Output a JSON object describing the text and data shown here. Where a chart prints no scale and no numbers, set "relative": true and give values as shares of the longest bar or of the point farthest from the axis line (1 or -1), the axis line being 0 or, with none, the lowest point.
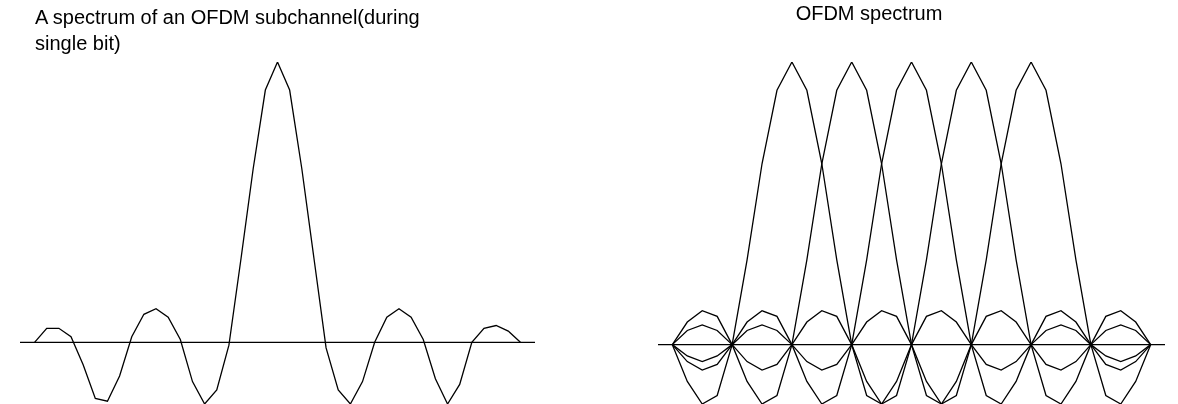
{
  "chart_data": [
    {
      "type": "line",
      "title": "A spectrum of an OFDM subchannel(during single bit)",
      "relative": true,
      "marker": "none",
      "categories": [
        null,
        null,
        null,
        null,
        null,
        null,
        null,
        null,
        null,
        null,
        null,
        null,
        null,
        null,
        null,
        null,
        null,
        null,
        null,
        null,
        null,
        null,
        null,
        null,
        null,
        null,
        null,
        null,
        null,
        null,
        null,
        null,
        null,
        null,
        null,
        null,
        null,
        null,
        null,
        null,
        null
      ],
      "series": [
        {
          "color": "#000000",
          "values": [
            0,
            0.05,
            0.05,
            0.02,
            -0.08,
            -0.2,
            -0.21,
            -0.12,
            0.02,
            0.1,
            0.12,
            0.09,
            0.01,
            -0.14,
            -0.22,
            -0.17,
            -0.01,
            0.3,
            0.62,
            0.9,
            1,
            0.9,
            0.62,
            0.3,
            -0.02,
            -0.17,
            -0.22,
            -0.14,
            0,
            0.09,
            0.12,
            0.09,
            0.01,
            -0.13,
            -0.22,
            -0.15,
            0,
            0.05,
            0.06,
            0.04,
            0
          ]
        }
      ]
    },
    {
      "type": "line",
      "title": "OFDM spectrum",
      "relative": true,
      "marker": "none",
      "categories": [
        null,
        null,
        null,
        null,
        null,
        null,
        null,
        null,
        null,
        null,
        null,
        null,
        null,
        null,
        null,
        null,
        null,
        null,
        null,
        null,
        null,
        null,
        null,
        null,
        null,
        null,
        null,
        null,
        null,
        null,
        null,
        null,
        null
      ],
      "series": [
        {
          "color": "#000000",
          "values": [
            0,
            -0.13,
            -0.21,
            -0.18,
            0,
            0.3,
            0.64,
            0.9,
            1,
            0.9,
            0.64,
            0.3,
            0,
            -0.18,
            -0.21,
            -0.13,
            0,
            0.1,
            0.12,
            0.08,
            0,
            -0.07,
            -0.09,
            -0.06,
            0,
            0.05,
            0.07,
            0.05,
            0,
            -0.04,
            -0.06,
            -0.04,
            0
          ]
        },
        {
          "color": "#000000",
          "values": [
            0,
            0.08,
            0.12,
            0.1,
            0,
            -0.13,
            -0.21,
            -0.18,
            0,
            0.3,
            0.64,
            0.9,
            1,
            0.9,
            0.64,
            0.3,
            0,
            -0.18,
            -0.21,
            -0.13,
            0,
            0.1,
            0.12,
            0.08,
            0,
            -0.07,
            -0.09,
            -0.06,
            0,
            0.05,
            0.07,
            0.05,
            0
          ]
        },
        {
          "color": "#000000",
          "values": [
            0,
            -0.06,
            -0.09,
            -0.07,
            0,
            0.08,
            0.12,
            0.1,
            0,
            -0.13,
            -0.21,
            -0.18,
            0,
            0.3,
            0.64,
            0.9,
            1,
            0.9,
            0.64,
            0.3,
            0,
            -0.18,
            -0.21,
            -0.13,
            0,
            0.1,
            0.12,
            0.08,
            0,
            -0.07,
            -0.09,
            -0.06,
            0
          ]
        },
        {
          "color": "#000000",
          "values": [
            0,
            0.05,
            0.07,
            0.05,
            0,
            -0.06,
            -0.09,
            -0.07,
            0,
            0.08,
            0.12,
            0.1,
            0,
            -0.13,
            -0.21,
            -0.18,
            0,
            0.3,
            0.64,
            0.9,
            1,
            0.9,
            0.64,
            0.3,
            0,
            -0.18,
            -0.21,
            -0.13,
            0,
            0.1,
            0.12,
            0.08,
            0
          ]
        },
        {
          "color": "#000000",
          "values": [
            0,
            -0.04,
            -0.06,
            -0.04,
            0,
            0.05,
            0.07,
            0.05,
            0,
            -0.06,
            -0.09,
            -0.07,
            0,
            0.08,
            0.12,
            0.1,
            0,
            -0.13,
            -0.21,
            -0.18,
            0,
            0.3,
            0.64,
            0.9,
            1,
            0.9,
            0.64,
            0.3,
            0,
            -0.18,
            -0.21,
            -0.13,
            0
          ]
        }
      ]
    }
  ]
}
